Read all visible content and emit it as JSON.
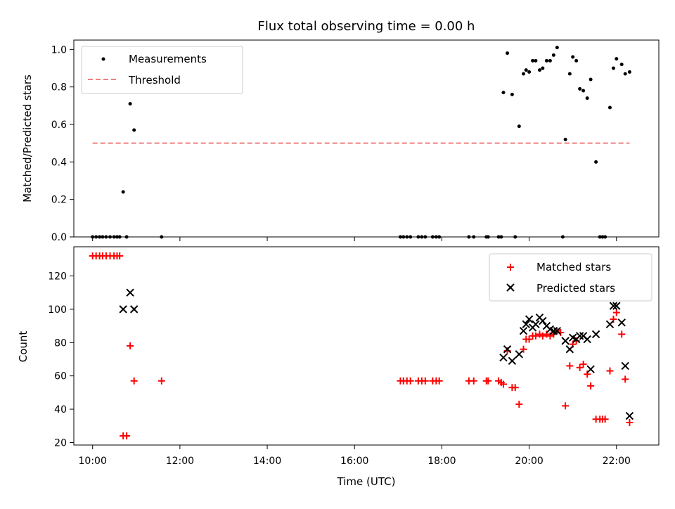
{
  "title": "Flux total observing time = 0.00 h",
  "chart_data": [
    {
      "type": "scatter",
      "ylabel": "Matched/Predicted stars",
      "xlim": [
        9.57,
        22.97
      ],
      "ylim": [
        0,
        1.05
      ],
      "xticks": [
        10,
        12,
        14,
        16,
        18,
        20,
        22
      ],
      "yticks": [
        0.0,
        0.2,
        0.4,
        0.6,
        0.8,
        1.0
      ],
      "ytick_labels": [
        "0.0",
        "0.2",
        "0.4",
        "0.6",
        "0.8",
        "1.0"
      ],
      "legend_position": "upper-left",
      "colors": {
        "measurements": "#000000",
        "threshold": "#f08080"
      },
      "series": [
        {
          "name": "Measurements",
          "marker": "dot",
          "points": [
            [
              10.0,
              0.0
            ],
            [
              10.08,
              0.0
            ],
            [
              10.16,
              0.0
            ],
            [
              10.23,
              0.0
            ],
            [
              10.31,
              0.0
            ],
            [
              10.4,
              0.0
            ],
            [
              10.49,
              0.0
            ],
            [
              10.56,
              0.0
            ],
            [
              10.62,
              0.0
            ],
            [
              10.7,
              0.24
            ],
            [
              10.78,
              0.0
            ],
            [
              10.86,
              0.71
            ],
            [
              10.95,
              0.57
            ],
            [
              11.58,
              0.0
            ],
            [
              17.05,
              0.0
            ],
            [
              17.12,
              0.0
            ],
            [
              17.2,
              0.0
            ],
            [
              17.28,
              0.0
            ],
            [
              17.46,
              0.0
            ],
            [
              17.54,
              0.0
            ],
            [
              17.62,
              0.0
            ],
            [
              17.79,
              0.0
            ],
            [
              17.87,
              0.0
            ],
            [
              17.94,
              0.0
            ],
            [
              18.62,
              0.0
            ],
            [
              18.73,
              0.0
            ],
            [
              19.02,
              0.0
            ],
            [
              19.06,
              0.0
            ],
            [
              19.3,
              0.0
            ],
            [
              19.36,
              0.0
            ],
            [
              19.41,
              0.77
            ],
            [
              19.5,
              0.98
            ],
            [
              19.61,
              0.76
            ],
            [
              19.68,
              0.0
            ],
            [
              19.77,
              0.59
            ],
            [
              19.87,
              0.87
            ],
            [
              19.93,
              0.89
            ],
            [
              20.0,
              0.88
            ],
            [
              20.08,
              0.94
            ],
            [
              20.15,
              0.94
            ],
            [
              20.24,
              0.89
            ],
            [
              20.31,
              0.9
            ],
            [
              20.4,
              0.94
            ],
            [
              20.48,
              0.94
            ],
            [
              20.56,
              0.97
            ],
            [
              20.64,
              1.01
            ],
            [
              20.77,
              0.0
            ],
            [
              20.83,
              0.52
            ],
            [
              20.93,
              0.87
            ],
            [
              21.0,
              0.96
            ],
            [
              21.08,
              0.94
            ],
            [
              21.16,
              0.79
            ],
            [
              21.24,
              0.78
            ],
            [
              21.33,
              0.74
            ],
            [
              21.41,
              0.84
            ],
            [
              21.53,
              0.4
            ],
            [
              21.62,
              0.0
            ],
            [
              21.68,
              0.0
            ],
            [
              21.74,
              0.0
            ],
            [
              21.85,
              0.69
            ],
            [
              21.93,
              0.9
            ],
            [
              22.0,
              0.95
            ],
            [
              22.12,
              0.92
            ],
            [
              22.2,
              0.87
            ],
            [
              22.3,
              0.88
            ]
          ]
        },
        {
          "name": "Threshold",
          "line_style": "dashed",
          "points": [
            [
              10.0,
              0.5
            ],
            [
              22.3,
              0.5
            ]
          ]
        }
      ]
    },
    {
      "type": "scatter",
      "xlabel": "Time (UTC)",
      "ylabel": "Count",
      "xlim": [
        9.57,
        22.97
      ],
      "ylim": [
        18.5,
        137.5
      ],
      "xticks": [
        10,
        12,
        14,
        16,
        18,
        20,
        22
      ],
      "xtick_labels": [
        "10:00",
        "12:00",
        "14:00",
        "16:00",
        "18:00",
        "20:00",
        "22:00"
      ],
      "yticks": [
        20,
        40,
        60,
        80,
        100,
        120
      ],
      "legend_position": "upper-right",
      "colors": {
        "matched": "#ff0000",
        "predicted": "#000000"
      },
      "series": [
        {
          "name": "Matched stars",
          "marker": "plus",
          "points": [
            [
              10.0,
              132
            ],
            [
              10.08,
              132
            ],
            [
              10.16,
              132
            ],
            [
              10.23,
              132
            ],
            [
              10.31,
              132
            ],
            [
              10.4,
              132
            ],
            [
              10.49,
              132
            ],
            [
              10.56,
              132
            ],
            [
              10.62,
              132
            ],
            [
              10.7,
              24
            ],
            [
              10.78,
              24
            ],
            [
              10.86,
              78
            ],
            [
              10.95,
              57
            ],
            [
              11.58,
              57
            ],
            [
              17.05,
              57
            ],
            [
              17.12,
              57
            ],
            [
              17.2,
              57
            ],
            [
              17.28,
              57
            ],
            [
              17.46,
              57
            ],
            [
              17.54,
              57
            ],
            [
              17.62,
              57
            ],
            [
              17.79,
              57
            ],
            [
              17.87,
              57
            ],
            [
              17.94,
              57
            ],
            [
              18.62,
              57
            ],
            [
              18.73,
              57
            ],
            [
              19.02,
              57
            ],
            [
              19.06,
              57
            ],
            [
              19.3,
              57
            ],
            [
              19.36,
              56
            ],
            [
              19.41,
              55
            ],
            [
              19.5,
              75
            ],
            [
              19.61,
              53
            ],
            [
              19.68,
              53
            ],
            [
              19.77,
              43
            ],
            [
              19.87,
              76
            ],
            [
              19.93,
              82
            ],
            [
              20.0,
              82
            ],
            [
              20.08,
              84
            ],
            [
              20.15,
              84
            ],
            [
              20.24,
              85
            ],
            [
              20.31,
              84
            ],
            [
              20.4,
              85
            ],
            [
              20.48,
              84
            ],
            [
              20.56,
              85
            ],
            [
              20.64,
              87
            ],
            [
              20.72,
              86
            ],
            [
              20.83,
              42
            ],
            [
              20.93,
              66
            ],
            [
              21.0,
              79
            ],
            [
              21.08,
              81
            ],
            [
              21.16,
              65
            ],
            [
              21.24,
              67
            ],
            [
              21.33,
              61
            ],
            [
              21.41,
              54
            ],
            [
              21.53,
              34
            ],
            [
              21.62,
              34
            ],
            [
              21.68,
              34
            ],
            [
              21.74,
              34
            ],
            [
              21.85,
              63
            ],
            [
              21.93,
              94
            ],
            [
              22.0,
              98
            ],
            [
              22.12,
              85
            ],
            [
              22.2,
              58
            ],
            [
              22.3,
              32
            ]
          ]
        },
        {
          "name": "Predicted stars",
          "marker": "x",
          "points": [
            [
              10.7,
              100
            ],
            [
              10.86,
              110
            ],
            [
              10.95,
              100
            ],
            [
              19.41,
              71
            ],
            [
              19.5,
              76
            ],
            [
              19.61,
              69
            ],
            [
              19.77,
              73
            ],
            [
              19.87,
              87
            ],
            [
              19.93,
              91
            ],
            [
              20.0,
              94
            ],
            [
              20.08,
              89
            ],
            [
              20.15,
              91
            ],
            [
              20.24,
              95
            ],
            [
              20.31,
              93
            ],
            [
              20.4,
              90
            ],
            [
              20.48,
              88
            ],
            [
              20.56,
              87
            ],
            [
              20.64,
              87
            ],
            [
              20.83,
              81
            ],
            [
              20.93,
              76
            ],
            [
              21.0,
              83
            ],
            [
              21.08,
              82
            ],
            [
              21.16,
              84
            ],
            [
              21.24,
              84
            ],
            [
              21.33,
              82
            ],
            [
              21.41,
              64
            ],
            [
              21.53,
              85
            ],
            [
              21.85,
              91
            ],
            [
              21.93,
              102
            ],
            [
              22.0,
              102
            ],
            [
              22.12,
              92
            ],
            [
              22.2,
              66
            ],
            [
              22.3,
              36
            ]
          ]
        }
      ]
    }
  ]
}
